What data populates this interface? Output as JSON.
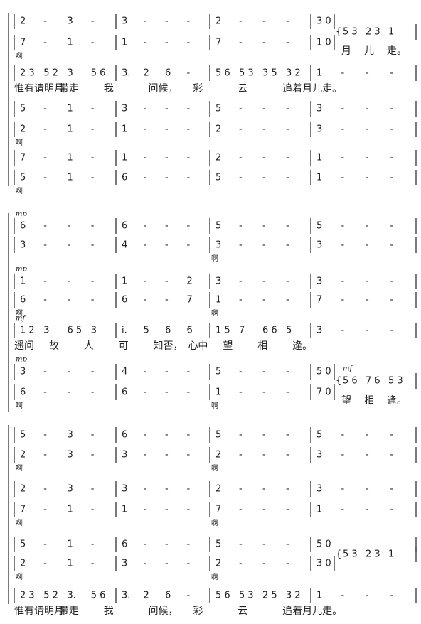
{
  "systems": [
    {
      "rows": [
        {
          "measures": [
            [
              "2",
              "-",
              "3",
              "-"
            ],
            [
              "3",
              "-",
              "-",
              "-"
            ],
            [
              "2",
              "-",
              "-",
              "-"
            ],
            [
              "3 0"
            ]
          ],
          "tail": [
            "5 3",
            "2 3",
            "1"
          ]
        },
        {
          "measures": [
            [
              "7",
              "-",
              "1",
              "-"
            ],
            [
              "1",
              "-",
              "-",
              "-"
            ],
            [
              "7",
              "-",
              "-",
              "-"
            ],
            [
              "1 0"
            ]
          ],
          "tail_lyric": [
            "月",
            "儿",
            "走。"
          ],
          "marks": [
            "啊"
          ]
        },
        {
          "measures": [
            [
              "2 3",
              "5 2",
              "3",
              "5 6"
            ],
            [
              "3.",
              "2",
              "6",
              "-"
            ],
            [
              "5 6",
              "5 3",
              "3 5",
              "3 2"
            ],
            [
              "1",
              "-",
              "-",
              "-"
            ]
          ],
          "lyric": [
            "惟有请明月",
            "带走",
            "我",
            "问候，",
            "彩",
            "云",
            "追着月儿走。"
          ]
        },
        {
          "measures": [
            [
              "5",
              "-",
              "1",
              "-"
            ],
            [
              "3",
              "-",
              "-",
              "-"
            ],
            [
              "5",
              "-",
              "-",
              "-"
            ],
            [
              "3",
              "-",
              "-",
              "-"
            ]
          ]
        },
        {
          "measures": [
            [
              "2",
              "-",
              "1",
              "-"
            ],
            [
              "1",
              "-",
              "-",
              "-"
            ],
            [
              "2",
              "-",
              "-",
              "-"
            ],
            [
              "3",
              "-",
              "-",
              "-"
            ]
          ],
          "marks": [
            "啊"
          ]
        },
        {
          "measures": [
            [
              "7",
              "-",
              "1",
              "-"
            ],
            [
              "1",
              "-",
              "-",
              "-"
            ],
            [
              "2",
              "-",
              "-",
              "-"
            ],
            [
              "1",
              "-",
              "-",
              "-"
            ]
          ]
        },
        {
          "measures": [
            [
              "5",
              "-",
              "1",
              "-"
            ],
            [
              "6",
              "-",
              "-",
              "-"
            ],
            [
              "5",
              "-",
              "-",
              "-"
            ],
            [
              "1",
              "-",
              "-",
              "-"
            ]
          ],
          "marks": [
            "啊"
          ]
        }
      ]
    },
    {
      "rows": [
        {
          "dynamic": "mp",
          "measures": [
            [
              "6",
              "-",
              "-",
              "-"
            ],
            [
              "6",
              "-",
              "-",
              "-"
            ],
            [
              "5",
              "-",
              "-",
              "-"
            ],
            [
              "5",
              "-",
              "-",
              "-"
            ]
          ]
        },
        {
          "measures": [
            [
              "3",
              "-",
              "-",
              "-"
            ],
            [
              "4",
              "-",
              "-",
              "-"
            ],
            [
              "3",
              "-",
              "-",
              "-"
            ],
            [
              "3",
              "-",
              "-",
              "-"
            ]
          ],
          "marks": [
            "啊"
          ]
        },
        {
          "dynamic": "mp",
          "measures": [
            [
              "1",
              "-",
              "-",
              "-"
            ],
            [
              "1",
              "-",
              "-",
              "2"
            ],
            [
              "3",
              "-",
              "-",
              "-"
            ],
            [
              "3",
              "-",
              "-",
              "-"
            ]
          ]
        },
        {
          "measures": [
            [
              "6",
              "-",
              "-",
              "-"
            ],
            [
              "6",
              "-",
              "-",
              "7"
            ],
            [
              "1",
              "-",
              "-",
              "-"
            ],
            [
              "7",
              "-",
              "-",
              "-"
            ]
          ],
          "marks": [
            "啊",
            "啊"
          ]
        },
        {
          "dynamic": "mf",
          "measures": [
            [
              "1 2",
              "3",
              "6 5",
              "3"
            ],
            [
              "i.",
              "5",
              "6",
              "6"
            ],
            [
              "1 5",
              "7",
              "6 6",
              "5"
            ],
            [
              "3",
              "-",
              "-",
              "-"
            ]
          ],
          "lyric": [
            "遥问",
            "故",
            "人",
            "可",
            "知否，",
            "心中",
            "望",
            "相",
            "逢。"
          ]
        },
        {
          "dynamic": "mp",
          "measures": [
            [
              "3",
              "-",
              "-",
              "-"
            ],
            [
              "4",
              "-",
              "-",
              "-"
            ],
            [
              "5",
              "-",
              "-",
              "-"
            ],
            [
              "5 0"
            ]
          ],
          "tail_dynamic": "mf",
          "tail": [
            "5 6",
            "7 6",
            "5 3"
          ]
        },
        {
          "measures": [
            [
              "6",
              "-",
              "-",
              "-"
            ],
            [
              "6",
              "-",
              "-",
              "-"
            ],
            [
              "1",
              "-",
              "-",
              "-"
            ],
            [
              "7 0"
            ]
          ],
          "tail_lyric": [
            "望",
            "相",
            "逢。"
          ],
          "marks": [
            "啊",
            "啊"
          ]
        }
      ]
    },
    {
      "rows": [
        {
          "measures": [
            [
              "5",
              "-",
              "3",
              "-"
            ],
            [
              "6",
              "-",
              "-",
              "-"
            ],
            [
              "5",
              "-",
              "-",
              "-"
            ],
            [
              "5",
              "-",
              "-",
              "-"
            ]
          ]
        },
        {
          "measures": [
            [
              "2",
              "-",
              "3",
              "-"
            ],
            [
              "3",
              "-",
              "-",
              "-"
            ],
            [
              "2",
              "-",
              "-",
              "-"
            ],
            [
              "3",
              "-",
              "-",
              "-"
            ]
          ],
          "marks": [
            "啊",
            "啊"
          ]
        },
        {
          "measures": [
            [
              "2",
              "-",
              "3",
              "-"
            ],
            [
              "3",
              "-",
              "-",
              "-"
            ],
            [
              "2",
              "-",
              "-",
              "-"
            ],
            [
              "3",
              "-",
              "-",
              "-"
            ]
          ]
        },
        {
          "measures": [
            [
              "7",
              "-",
              "1",
              "-"
            ],
            [
              "1",
              "-",
              "-",
              "-"
            ],
            [
              "7",
              "-",
              "-",
              "-"
            ],
            [
              "1",
              "-",
              "-",
              "-"
            ]
          ],
          "marks": [
            "啊",
            "啊"
          ]
        },
        {
          "measures": [
            [
              "5",
              "-",
              "1",
              "-"
            ],
            [
              "6",
              "-",
              "-",
              "-"
            ],
            [
              "5",
              "-",
              "-",
              "-"
            ],
            [
              "5 0"
            ]
          ]
        },
        {
          "measures": [
            [
              "2",
              "-",
              "1",
              "-"
            ],
            [
              "3",
              "-",
              "-",
              "-"
            ],
            [
              "2",
              "-",
              "-",
              "-"
            ],
            [
              "3 0"
            ]
          ],
          "tail": [
            "5 3",
            "2 3",
            "1"
          ],
          "marks": [
            "啊",
            "啊"
          ]
        },
        {
          "measures": [
            [
              "2 3",
              "5 2",
              "3.",
              "5 6"
            ],
            [
              "3.",
              "2",
              "6",
              "-"
            ],
            [
              "5 6",
              "5 3",
              "2 5",
              "3 2"
            ],
            [
              "1",
              "-",
              "-",
              "-"
            ]
          ],
          "lyric": [
            "惟有请明月",
            "带走",
            "我",
            "问候，",
            "彩",
            "云",
            "追着月儿走。"
          ]
        }
      ]
    }
  ]
}
